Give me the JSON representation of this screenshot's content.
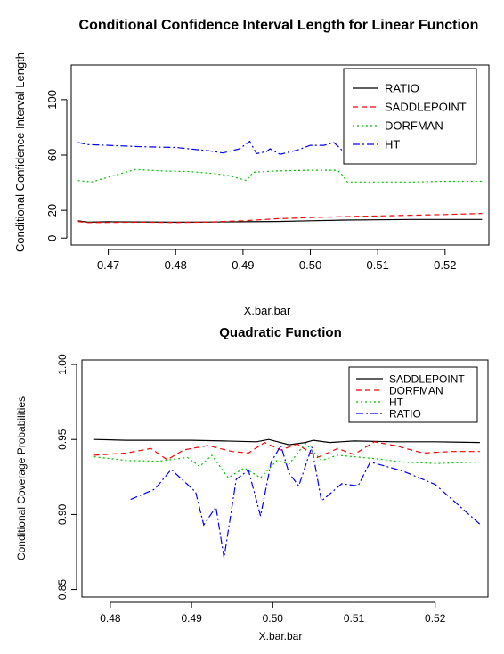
{
  "chart_data": [
    {
      "type": "line",
      "title": "Conditional Confidence Interval Length for Linear Function",
      "xlabel": "X.bar.bar",
      "ylabel": "Conditional Confidence Interval Length",
      "xlim": [
        0.4645,
        0.5265
      ],
      "ylim": [
        -5,
        125
      ],
      "xticks": [
        "0.47",
        "0.48",
        "0.49",
        "0.50",
        "0.51",
        "0.52"
      ],
      "yticks": [
        "0",
        "20",
        "60",
        "100"
      ],
      "legend_position": "top-right",
      "series": [
        {
          "name": "RATIO",
          "color": "#000000",
          "dash": "",
          "x": [
            0.4655,
            0.467,
            0.47,
            0.475,
            0.48,
            0.485,
            0.49,
            0.495,
            0.5,
            0.505,
            0.51,
            0.515,
            0.52,
            0.5255
          ],
          "y": [
            12.5,
            11.5,
            11.8,
            11.7,
            11.5,
            11.6,
            11.8,
            12.0,
            12.5,
            13.0,
            13.2,
            13.5,
            13.5,
            13.5
          ]
        },
        {
          "name": "SADDLEPOINT",
          "color": "#ff0000",
          "dash": "6,4",
          "x": [
            0.4655,
            0.467,
            0.47,
            0.475,
            0.48,
            0.485,
            0.49,
            0.495,
            0.5,
            0.505,
            0.51,
            0.515,
            0.52,
            0.5255
          ],
          "y": [
            12.0,
            11.2,
            11.3,
            11.5,
            11.2,
            11.6,
            12.5,
            14.0,
            14.8,
            15.5,
            16.0,
            16.5,
            17.0,
            17.8
          ]
        },
        {
          "name": "DORFMAN",
          "color": "#00c000",
          "dash": "2,3",
          "x": [
            0.4655,
            0.4665,
            0.4675,
            0.47,
            0.474,
            0.478,
            0.482,
            0.486,
            0.488,
            0.4905,
            0.4915,
            0.495,
            0.5,
            0.504,
            0.5045,
            0.5055,
            0.51,
            0.515,
            0.52,
            0.5255
          ],
          "y": [
            41.5,
            41.0,
            40.5,
            44.0,
            49.5,
            48.5,
            48.0,
            46.5,
            45.0,
            41.5,
            47.5,
            48.5,
            49.0,
            49.0,
            47.0,
            40.5,
            40.5,
            40.5,
            41.0,
            41.0
          ]
        },
        {
          "name": "HT",
          "color": "#0000ff",
          "dash": "8,3,2,3",
          "x": [
            0.4655,
            0.467,
            0.47,
            0.475,
            0.48,
            0.485,
            0.487,
            0.4895,
            0.491,
            0.492,
            0.4935,
            0.494,
            0.4955,
            0.498,
            0.5,
            0.502,
            0.5035,
            0.5045,
            0.5055,
            0.5065
          ],
          "y": [
            69.0,
            67.5,
            67.0,
            66.0,
            65.5,
            63.0,
            61.5,
            64.5,
            70.0,
            61.0,
            62.5,
            64.5,
            60.5,
            63.5,
            67.0,
            67.0,
            69.0,
            64.5,
            58.5,
            60.0
          ]
        }
      ]
    },
    {
      "type": "line",
      "title": "Quadratic Function",
      "xlabel": "X.bar.bar",
      "ylabel": "Conditional Coverage Probabilities",
      "xlim": [
        0.4765,
        0.5265
      ],
      "ylim": [
        0.845,
        1.003
      ],
      "xticks": [
        "0.48",
        "0.49",
        "0.50",
        "0.51",
        "0.52"
      ],
      "yticks": [
        "0.85",
        "0.90",
        "0.95",
        "1.00"
      ],
      "legend_position": "top-right",
      "series": [
        {
          "name": "SADDLEPOINT",
          "color": "#000000",
          "dash": "",
          "x": [
            0.478,
            0.482,
            0.486,
            0.49,
            0.494,
            0.498,
            0.4995,
            0.502,
            0.504,
            0.505,
            0.507,
            0.51,
            0.515,
            0.52,
            0.5255
          ],
          "y": [
            0.95,
            0.9495,
            0.9495,
            0.9495,
            0.949,
            0.9485,
            0.95,
            0.9465,
            0.948,
            0.9495,
            0.948,
            0.949,
            0.9485,
            0.9485,
            0.948
          ]
        },
        {
          "name": "DORFMAN",
          "color": "#ff0000",
          "dash": "6,4",
          "x": [
            0.478,
            0.482,
            0.485,
            0.487,
            0.489,
            0.492,
            0.495,
            0.497,
            0.499,
            0.501,
            0.503,
            0.5055,
            0.508,
            0.51,
            0.5125,
            0.515,
            0.5185,
            0.522,
            0.5255
          ],
          "y": [
            0.9395,
            0.941,
            0.944,
            0.9365,
            0.943,
            0.946,
            0.942,
            0.941,
            0.948,
            0.943,
            0.947,
            0.938,
            0.944,
            0.94,
            0.9485,
            0.946,
            0.941,
            0.942,
            0.942
          ]
        },
        {
          "name": "HT",
          "color": "#00c000",
          "dash": "2,3",
          "x": [
            0.478,
            0.482,
            0.486,
            0.4895,
            0.491,
            0.4925,
            0.4945,
            0.4965,
            0.4985,
            0.5005,
            0.502,
            0.504,
            0.506,
            0.508,
            0.51,
            0.513,
            0.516,
            0.52,
            0.5255
          ],
          "y": [
            0.9385,
            0.936,
            0.9355,
            0.938,
            0.932,
            0.9395,
            0.9245,
            0.931,
            0.9245,
            0.936,
            0.9335,
            0.9475,
            0.936,
            0.9395,
            0.9385,
            0.937,
            0.935,
            0.934,
            0.935
          ]
        },
        {
          "name": "RATIO",
          "color": "#0000ff",
          "dash": "8,3,2,3",
          "x": [
            0.4825,
            0.4855,
            0.4875,
            0.4905,
            0.4915,
            0.493,
            0.494,
            0.4955,
            0.497,
            0.4985,
            0.4998,
            0.501,
            0.502,
            0.5032,
            0.5048,
            0.506,
            0.5085,
            0.5105,
            0.512,
            0.516,
            0.52,
            0.5255
          ],
          "y": [
            0.91,
            0.917,
            0.93,
            0.915,
            0.893,
            0.905,
            0.871,
            0.9235,
            0.9295,
            0.899,
            0.935,
            0.946,
            0.9275,
            0.919,
            0.945,
            0.909,
            0.9205,
            0.919,
            0.935,
            0.929,
            0.92,
            0.8935
          ]
        }
      ]
    }
  ]
}
